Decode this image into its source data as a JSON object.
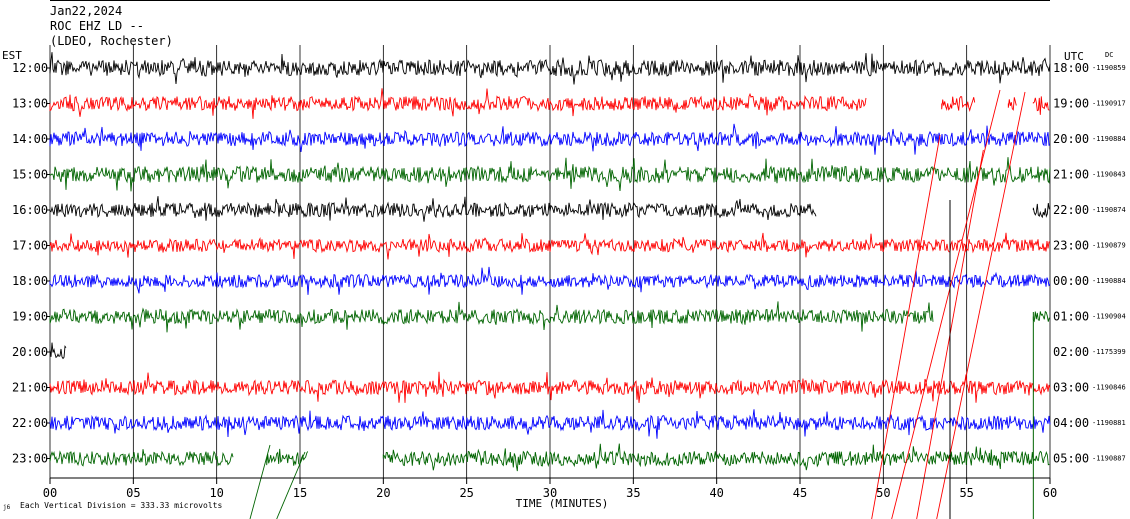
{
  "header": {
    "date": "Jan22,2024",
    "station": "ROC EHZ LD --",
    "network": "(LDEO, Rochester)"
  },
  "chart_data": {
    "type": "line",
    "left_axis_label": "EST",
    "right_axis_label": "UTC",
    "dc_label": "DC",
    "xlabel": "TIME (MINUTES)",
    "xlim": [
      0,
      60
    ],
    "x_ticks": [
      "00",
      "05",
      "10",
      "15",
      "20",
      "25",
      "30",
      "35",
      "40",
      "45",
      "50",
      "55",
      "60"
    ],
    "scale_note": "Each Vertical Division =  333.33 microvolts",
    "grid": true,
    "colors": [
      "#000000",
      "#ff0000",
      "#0000ff",
      "#006400"
    ],
    "rows": [
      {
        "est": "12:00",
        "utc": "18:00",
        "dc": "-1190859",
        "color": "#000000",
        "amp": 1.0,
        "segments": [
          [
            0,
            60
          ]
        ]
      },
      {
        "est": "13:00",
        "utc": "19:00",
        "dc": "-1190917",
        "color": "#ff0000",
        "amp": 0.9,
        "segments": [
          [
            0,
            49
          ],
          [
            53.5,
            55.5
          ],
          [
            57.5,
            58
          ],
          [
            59,
            60
          ]
        ]
      },
      {
        "est": "14:00",
        "utc": "20:00",
        "dc": "-1190884",
        "color": "#0000ff",
        "amp": 0.9,
        "segments": [
          [
            0,
            60
          ]
        ]
      },
      {
        "est": "15:00",
        "utc": "21:00",
        "dc": "-1190843",
        "color": "#006400",
        "amp": 1.0,
        "segments": [
          [
            0,
            60
          ]
        ]
      },
      {
        "est": "16:00",
        "utc": "22:00",
        "dc": "-1190874",
        "color": "#000000",
        "amp": 0.9,
        "segments": [
          [
            0,
            46
          ],
          [
            59,
            60
          ]
        ]
      },
      {
        "est": "17:00",
        "utc": "23:00",
        "dc": "-1190879",
        "color": "#ff0000",
        "amp": 0.8,
        "segments": [
          [
            0,
            60
          ]
        ]
      },
      {
        "est": "18:00",
        "utc": "00:00",
        "dc": "-1190884",
        "color": "#0000ff",
        "amp": 0.8,
        "segments": [
          [
            0,
            60
          ]
        ]
      },
      {
        "est": "19:00",
        "utc": "01:00",
        "dc": "-1190904",
        "color": "#006400",
        "amp": 0.9,
        "segments": [
          [
            0,
            53
          ],
          [
            59,
            60
          ]
        ]
      },
      {
        "est": "20:00",
        "utc": "02:00",
        "dc": "-1175399",
        "color": "#000000",
        "amp": 1.2,
        "segments": [
          [
            0,
            1
          ]
        ]
      },
      {
        "est": "21:00",
        "utc": "03:00",
        "dc": "-1190846",
        "color": "#ff0000",
        "amp": 0.9,
        "segments": [
          [
            0,
            60
          ]
        ]
      },
      {
        "est": "22:00",
        "utc": "04:00",
        "dc": "-1190881",
        "color": "#0000ff",
        "amp": 0.9,
        "segments": [
          [
            0,
            60
          ]
        ]
      },
      {
        "est": "23:00",
        "utc": "05:00",
        "dc": "-1190887",
        "color": "#006400",
        "amp": 0.9,
        "segments": [
          [
            0,
            11
          ],
          [
            13,
            15.5
          ],
          [
            20,
            60
          ]
        ]
      }
    ]
  }
}
